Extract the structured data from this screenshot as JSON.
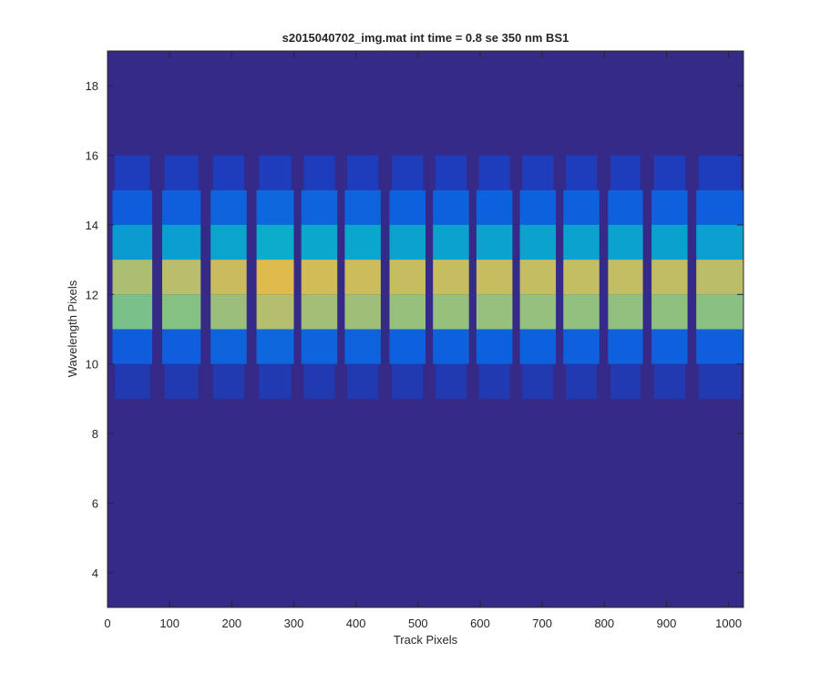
{
  "chart_data": {
    "type": "heatmap",
    "title": "s2015040702_img.mat int time = 0.8 se  350 nm BS1",
    "xlabel": "Track Pixels",
    "ylabel": "Wavelength Pixels",
    "xlim": [
      0,
      1024
    ],
    "ylim": [
      3,
      19
    ],
    "xticks": [
      0,
      100,
      200,
      300,
      400,
      500,
      600,
      700,
      800,
      900,
      1000
    ],
    "yticks": [
      4,
      6,
      8,
      10,
      12,
      14,
      16,
      18
    ],
    "grid": false,
    "colormap": "parula",
    "colors": {
      "background": "#352a87",
      "low": "#3a3aa0",
      "mid_low": "#0f5cdd",
      "mid": "#0ba3d0",
      "mid_high": "#5fc39a",
      "high": "#f4b93d",
      "max": "#f9fb0e"
    },
    "rows": [
      {
        "y_from": 15,
        "y_to": 16,
        "level": 0.1
      },
      {
        "y_from": 14,
        "y_to": 15,
        "level": 0.28
      },
      {
        "y_from": 13,
        "y_to": 14,
        "level": 0.48
      },
      {
        "y_from": 12,
        "y_to": 13,
        "level": 0.82
      },
      {
        "y_from": 11,
        "y_to": 12,
        "level": 0.74
      },
      {
        "y_from": 10,
        "y_to": 11,
        "level": 0.28
      },
      {
        "y_from": 9,
        "y_to": 10,
        "level": 0.08
      }
    ],
    "tracks": [
      {
        "x_from": 8,
        "x_to": 72,
        "peak": 0.72
      },
      {
        "x_from": 88,
        "x_to": 150,
        "peak": 0.78
      },
      {
        "x_from": 166,
        "x_to": 224,
        "peak": 0.88
      },
      {
        "x_from": 240,
        "x_to": 300,
        "peak": 1.0
      },
      {
        "x_from": 312,
        "x_to": 370,
        "peak": 0.92
      },
      {
        "x_from": 382,
        "x_to": 440,
        "peak": 0.9
      },
      {
        "x_from": 454,
        "x_to": 512,
        "peak": 0.86
      },
      {
        "x_from": 524,
        "x_to": 582,
        "peak": 0.86
      },
      {
        "x_from": 594,
        "x_to": 652,
        "peak": 0.86
      },
      {
        "x_from": 664,
        "x_to": 722,
        "peak": 0.85
      },
      {
        "x_from": 734,
        "x_to": 792,
        "peak": 0.84
      },
      {
        "x_from": 806,
        "x_to": 862,
        "peak": 0.84
      },
      {
        "x_from": 876,
        "x_to": 934,
        "peak": 0.83
      },
      {
        "x_from": 948,
        "x_to": 1024,
        "peak": 0.8
      }
    ]
  }
}
